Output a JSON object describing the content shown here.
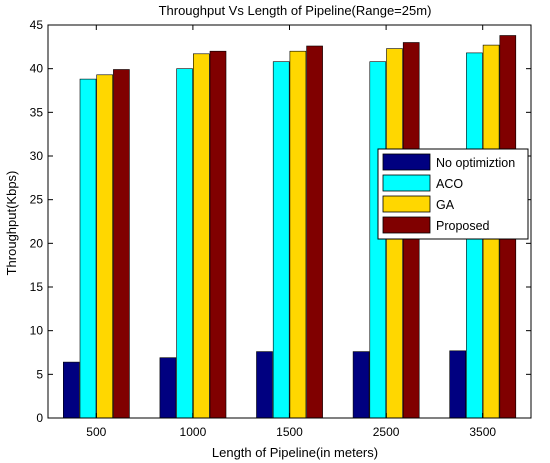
{
  "chart_data": {
    "type": "bar",
    "title": "Throughput Vs Length of Pipeline(Range=25m)",
    "xlabel": "Length of Pipeline(in meters)",
    "ylabel": "Throughput(Kbps)",
    "categories": [
      "500",
      "1000",
      "1500",
      "2500",
      "3500"
    ],
    "ylim": [
      0,
      45
    ],
    "yticks": [
      0,
      5,
      10,
      15,
      20,
      25,
      30,
      35,
      40,
      45
    ],
    "grid": false,
    "legend_position": "right",
    "series": [
      {
        "name": "No optimiztion",
        "color": "#000080",
        "values": [
          6.4,
          6.9,
          7.6,
          7.6,
          7.7
        ]
      },
      {
        "name": "ACO",
        "color": "#00FFFF",
        "values": [
          38.8,
          40.0,
          40.8,
          40.8,
          41.8
        ]
      },
      {
        "name": "GA",
        "color": "#FFD700",
        "values": [
          39.3,
          41.7,
          42.0,
          42.3,
          42.7
        ]
      },
      {
        "name": "Proposed",
        "color": "#800000",
        "values": [
          39.9,
          42.0,
          42.6,
          43.0,
          43.8
        ]
      }
    ]
  }
}
